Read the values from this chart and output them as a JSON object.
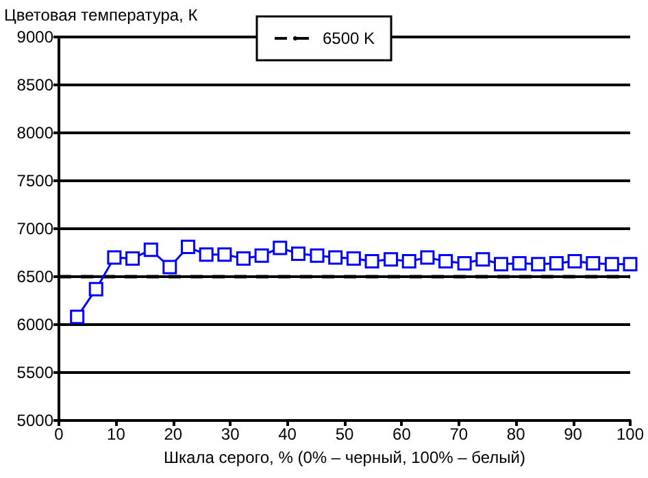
{
  "chart_data": {
    "type": "line",
    "xlabel": "Шкала серого, % (0% – черный, 100% – белый)",
    "ylabel": "Цветовая температура, К",
    "x": [
      3.2,
      6.5,
      9.7,
      12.9,
      16.1,
      19.4,
      22.6,
      25.8,
      29,
      32.3,
      35.5,
      38.7,
      41.9,
      45.2,
      48.4,
      51.6,
      54.8,
      58.1,
      61.3,
      64.5,
      67.7,
      71,
      74.2,
      77.4,
      80.6,
      83.9,
      87.1,
      90.3,
      93.5,
      96.8,
      100
    ],
    "series": [
      {
        "color": "#0000ff",
        "values": [
          6080,
          6370,
          6700,
          6690,
          6780,
          6600,
          6810,
          6730,
          6730,
          6690,
          6720,
          6800,
          6740,
          6720,
          6700,
          6690,
          6660,
          6680,
          6660,
          6700,
          6660,
          6640,
          6680,
          6630,
          6640,
          6630,
          6640,
          6660,
          6640,
          6630,
          6630
        ]
      }
    ],
    "ref_lines": [
      {
        "axis": "y",
        "value": 6500,
        "label": "6500 K",
        "color": "#000000",
        "line_style": "dashed"
      }
    ],
    "xlim": [
      0,
      100
    ],
    "xticks": [
      0,
      10,
      20,
      30,
      40,
      50,
      60,
      70,
      80,
      90,
      100
    ],
    "ylim": [
      5000,
      9000
    ],
    "yticks": [
      5000,
      5500,
      6000,
      6500,
      7000,
      7500,
      8000,
      8500,
      9000
    ],
    "grid": "y",
    "legend": "top",
    "marker": "square",
    "line_style": "solid"
  }
}
